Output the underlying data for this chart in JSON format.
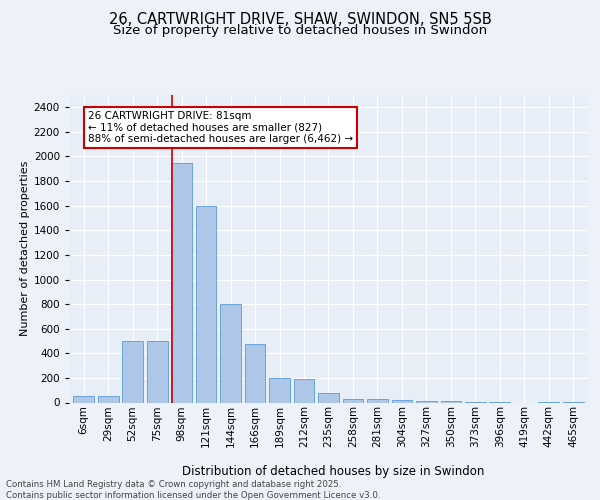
{
  "title_line1": "26, CARTWRIGHT DRIVE, SHAW, SWINDON, SN5 5SB",
  "title_line2": "Size of property relative to detached houses in Swindon",
  "xlabel": "Distribution of detached houses by size in Swindon",
  "ylabel": "Number of detached properties",
  "categories": [
    "6sqm",
    "29sqm",
    "52sqm",
    "75sqm",
    "98sqm",
    "121sqm",
    "144sqm",
    "166sqm",
    "189sqm",
    "212sqm",
    "235sqm",
    "258sqm",
    "281sqm",
    "304sqm",
    "327sqm",
    "350sqm",
    "373sqm",
    "396sqm",
    "419sqm",
    "442sqm",
    "465sqm"
  ],
  "values": [
    50,
    50,
    500,
    500,
    1950,
    1600,
    800,
    475,
    200,
    190,
    75,
    30,
    25,
    20,
    15,
    10,
    8,
    5,
    0,
    8,
    5
  ],
  "bar_color": "#aec6e8",
  "bar_edge_color": "#5b9bd5",
  "ylim": [
    0,
    2500
  ],
  "yticks": [
    0,
    200,
    400,
    600,
    800,
    1000,
    1200,
    1400,
    1600,
    1800,
    2000,
    2200,
    2400
  ],
  "property_line_x": 3.62,
  "annotation_text": "26 CARTWRIGHT DRIVE: 81sqm\n← 11% of detached houses are smaller (827)\n88% of semi-detached houses are larger (6,462) →",
  "annotation_box_color": "#ffffff",
  "annotation_box_edge": "#cc0000",
  "vline_color": "#cc0000",
  "bg_color": "#e8eef7",
  "fig_bg_color": "#edf2f9",
  "footer_text": "Contains HM Land Registry data © Crown copyright and database right 2025.\nContains public sector information licensed under the Open Government Licence v3.0.",
  "title_fontsize": 10.5,
  "subtitle_fontsize": 9.5,
  "xlabel_fontsize": 8.5,
  "ylabel_fontsize": 8,
  "tick_fontsize": 7.5,
  "ann_fontsize": 7.5,
  "footer_fontsize": 6.2
}
